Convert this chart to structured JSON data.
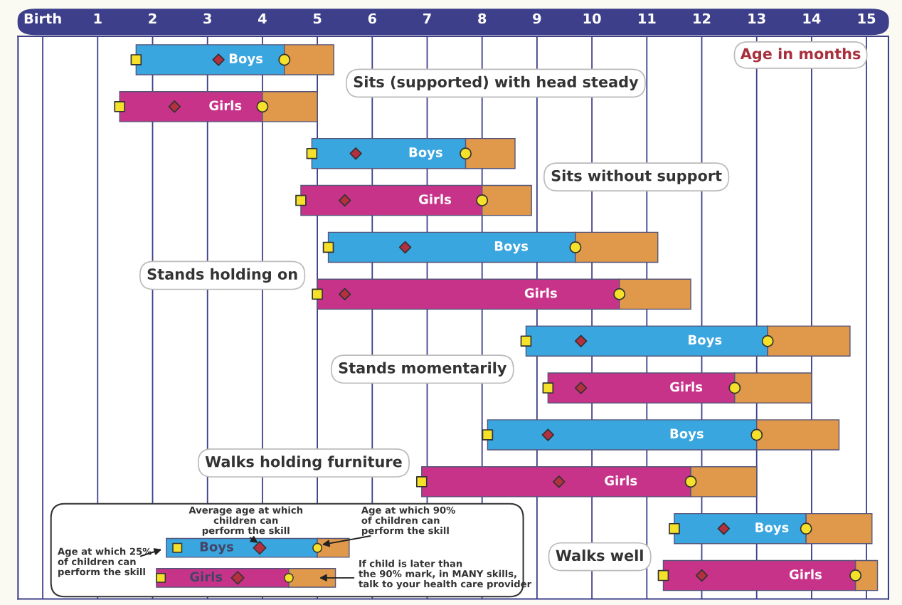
{
  "chart_data": {
    "type": "bar",
    "orientation": "horizontal",
    "stacked": true,
    "categories": [
      null,
      null,
      null,
      null,
      null,
      null,
      null,
      null,
      null,
      null,
      null,
      null
    ],
    "xlabel": "Age in months",
    "xlim": [
      -0.45,
      15.4
    ],
    "xticks": [
      {
        "value": 0,
        "label": "Birth"
      },
      1,
      2,
      3,
      4,
      5,
      6,
      7,
      8,
      9,
      10,
      11,
      12,
      13,
      14,
      15
    ],
    "grid": "x",
    "series": [
      {
        "colors": [
          "#3aa6e0",
          "#c8338a",
          "#3aa6e0",
          "#c8338a",
          "#3aa6e0",
          "#c8338a",
          "#3aa6e0",
          "#c8338a",
          "#3aa6e0",
          "#c8338a",
          "#3aa6e0",
          "#c8338a"
        ],
        "base": [
          1.7,
          1.4,
          4.9,
          4.7,
          5.2,
          5.0,
          8.8,
          9.2,
          8.1,
          6.9,
          11.5,
          11.3
        ],
        "values": [
          2.7,
          2.6,
          2.8,
          3.3,
          4.5,
          5.5,
          4.4,
          3.4,
          4.9,
          4.9,
          2.4,
          3.5
        ],
        "value_labels": [
          "Boys",
          "Girls",
          "Boys",
          "Girls",
          "Boys",
          "Girls",
          "Boys",
          "Girls",
          "Boys",
          "Girls",
          "Boys",
          "Girls"
        ]
      },
      {
        "color": "#e0994a",
        "values": [
          0.9,
          1.0,
          0.9,
          0.9,
          1.5,
          1.3,
          1.5,
          1.4,
          1.5,
          1.2,
          1.2,
          0.4
        ]
      },
      {
        "type": "scatter",
        "marker": "square",
        "color": "#f5e12a",
        "values": [
          1.7,
          1.4,
          4.9,
          4.7,
          5.2,
          5.0,
          8.8,
          9.2,
          8.1,
          6.9,
          11.5,
          11.3
        ]
      },
      {
        "type": "scatter",
        "marker": "diamond",
        "color": "#b5303f",
        "values": [
          3.2,
          2.4,
          5.7,
          5.5,
          6.6,
          5.5,
          9.8,
          9.8,
          9.2,
          9.4,
          12.4,
          12.0
        ]
      },
      {
        "type": "scatter",
        "marker": "circle",
        "color": "#f5e12a",
        "values": [
          4.4,
          4.0,
          7.7,
          8.0,
          9.7,
          10.5,
          13.2,
          12.6,
          13.0,
          11.8,
          13.9,
          14.8
        ]
      }
    ],
    "annotations": [
      "Sits (supported) with head steady",
      "Sits without support",
      "Stands holding on",
      "Stands momentarily",
      "Walks holding furniture",
      "Walks well",
      "Average age at which\nchildren can\nperform the skill",
      "Age at which 90%\nof children can\nperform the skill",
      "Age at which 25%\nof children can\nperform the skill",
      "If child is later than\nthe 90% mark, in MANY skills,\ntalk to your health care provider"
    ]
  }
}
